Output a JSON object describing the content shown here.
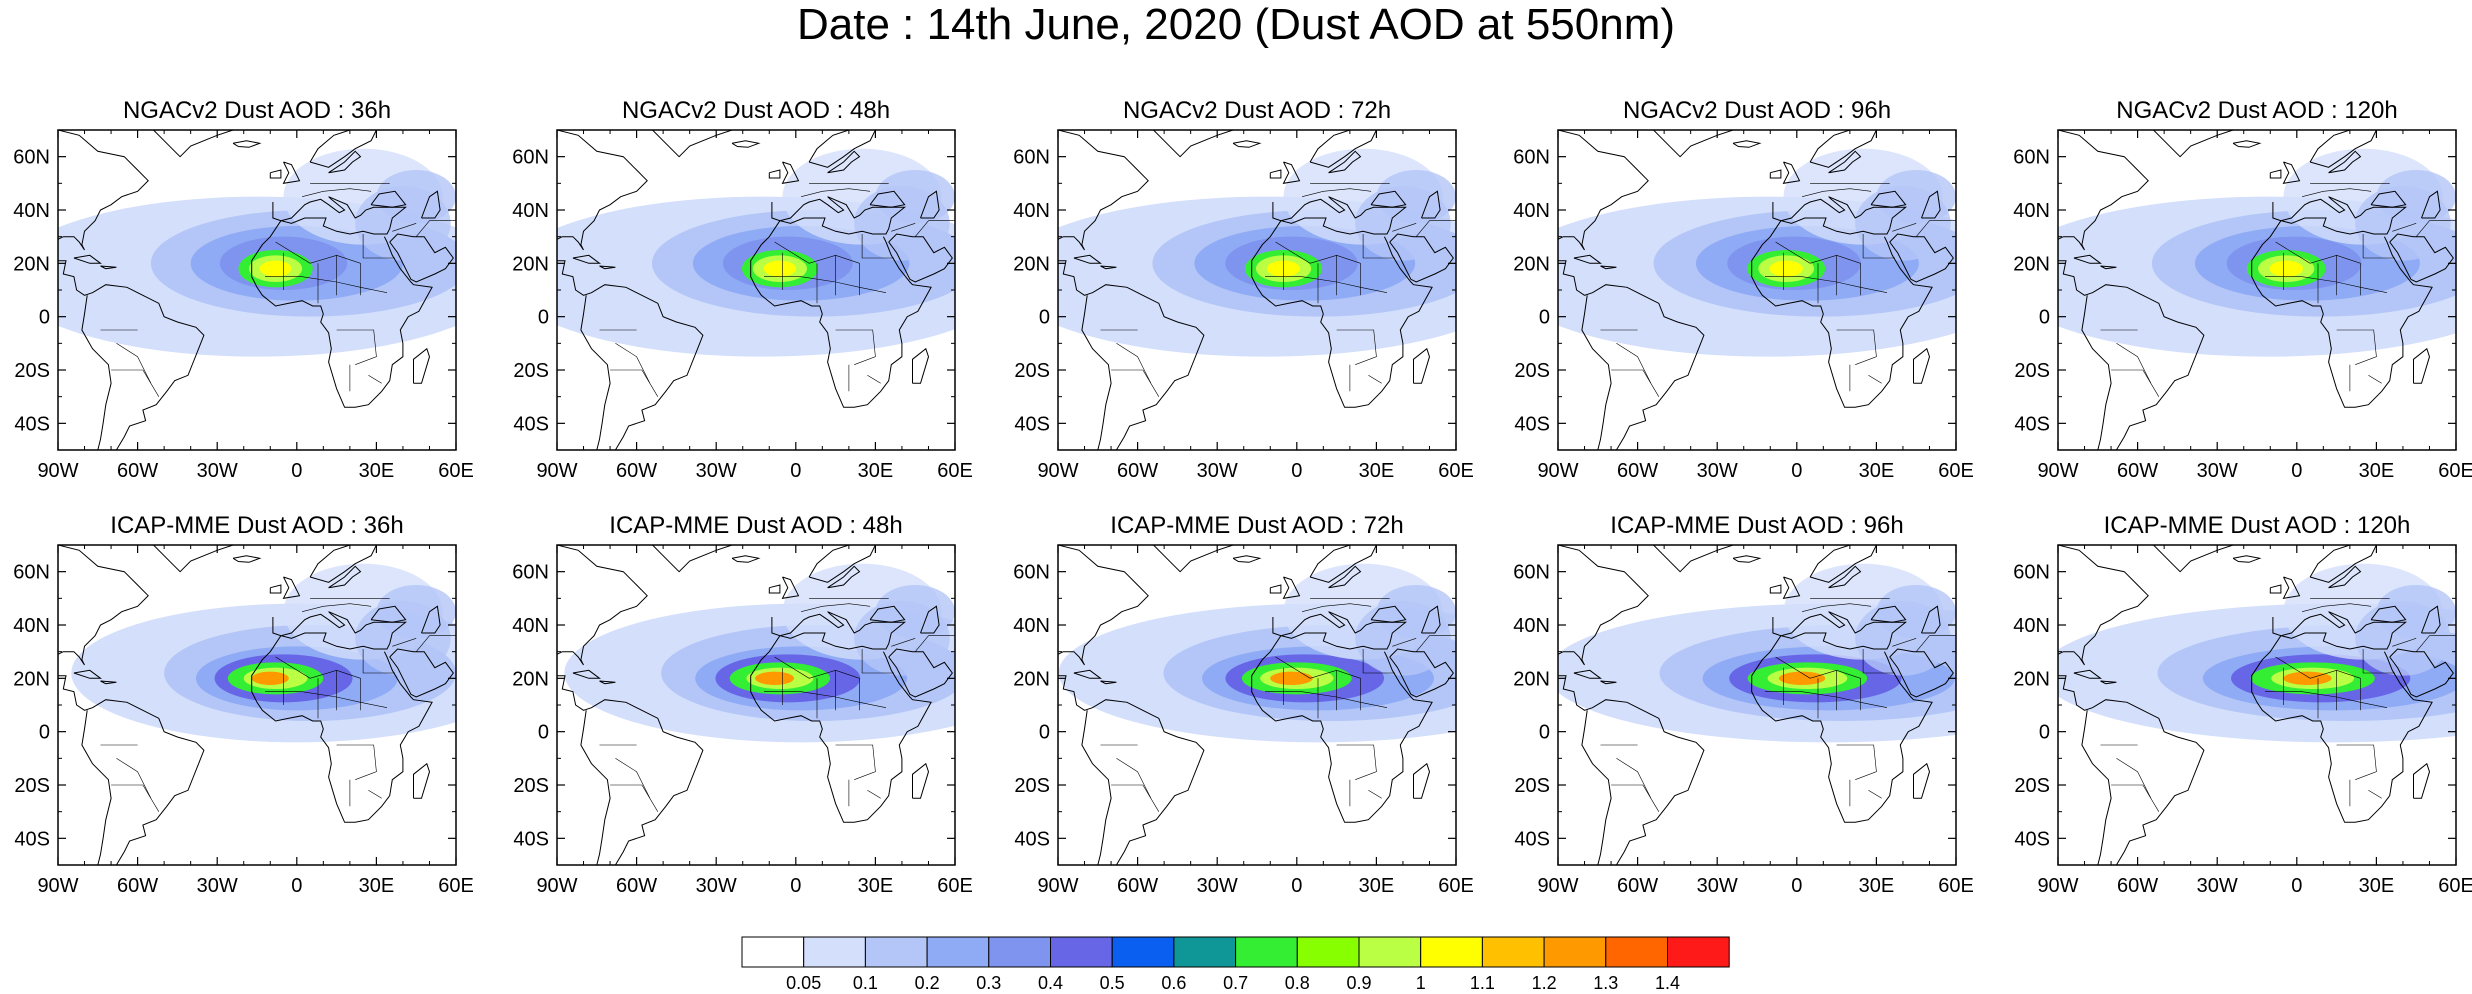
{
  "title": "Date : 14th June, 2020 (Dust AOD at 550nm)",
  "lat_ticks": [
    "60N",
    "40N",
    "20N",
    "0",
    "20S",
    "40S"
  ],
  "lon_ticks": [
    "90W",
    "60W",
    "30W",
    "0",
    "30E",
    "60E"
  ],
  "map_extent": {
    "lon": [
      -90,
      60
    ],
    "lat": [
      -50,
      70
    ]
  },
  "panels": [
    {
      "title": "NGACv2 Dust AOD : 36h",
      "row": 0,
      "col": 0
    },
    {
      "title": "NGACv2 Dust AOD : 48h",
      "row": 0,
      "col": 1
    },
    {
      "title": "NGACv2 Dust AOD : 72h",
      "row": 0,
      "col": 2
    },
    {
      "title": "NGACv2 Dust AOD : 96h",
      "row": 0,
      "col": 3
    },
    {
      "title": "NGACv2 Dust AOD : 120h",
      "row": 0,
      "col": 4
    },
    {
      "title": "ICAP-MME Dust AOD : 36h",
      "row": 1,
      "col": 0
    },
    {
      "title": "ICAP-MME Dust AOD : 48h",
      "row": 1,
      "col": 1
    },
    {
      "title": "ICAP-MME Dust AOD : 72h",
      "row": 1,
      "col": 2
    },
    {
      "title": "ICAP-MME Dust AOD : 96h",
      "row": 1,
      "col": 3
    },
    {
      "title": "ICAP-MME Dust AOD : 120h",
      "row": 1,
      "col": 4
    }
  ],
  "colorbar": {
    "colors": [
      "#ffffff",
      "#d3dffb",
      "#b4c6f7",
      "#8fabf5",
      "#7f94ee",
      "#6666e6",
      "#0a5ff0",
      "#0f9696",
      "#33ee33",
      "#88ff00",
      "#bbff44",
      "#ffff00",
      "#ffc000",
      "#ff9900",
      "#ff6600",
      "#ff1a1a"
    ],
    "labels": [
      "0.05",
      "0.1",
      "0.2",
      "0.3",
      "0.4",
      "0.5",
      "0.6",
      "0.7",
      "0.8",
      "0.9",
      "1",
      "1.1",
      "1.2",
      "1.3",
      "1.4"
    ]
  }
}
